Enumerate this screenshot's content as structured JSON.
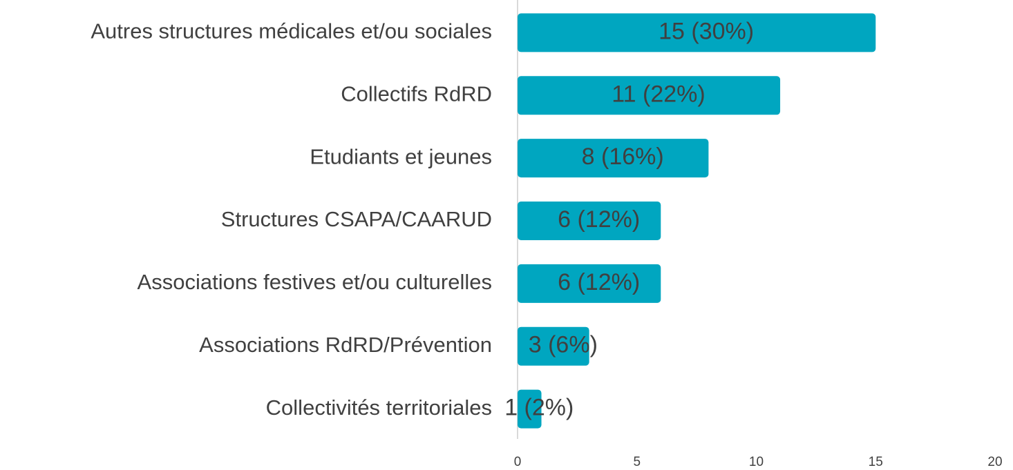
{
  "chart_data": {
    "type": "barh",
    "categories": [
      "Autres structures médicales et/ou sociales",
      "Collectifs RdRD",
      "Etudiants et jeunes",
      "Structures CSAPA/CAARUD",
      "Associations festives et/ou culturelles",
      "Associations RdRD/Prévention",
      "Collectivités territoriales"
    ],
    "values": [
      15,
      11,
      8,
      6,
      6,
      3,
      1
    ],
    "value_labels": [
      "15 (30%)",
      "11 (22%)",
      "8 (16%)",
      "6 (12%)",
      "6 (12%)",
      "3 (6%)",
      "1 (2%)"
    ],
    "color": "#00a6c0",
    "xlim": [
      0,
      20
    ],
    "xticks": [
      0,
      5,
      10,
      15,
      20
    ],
    "grid": false
  }
}
